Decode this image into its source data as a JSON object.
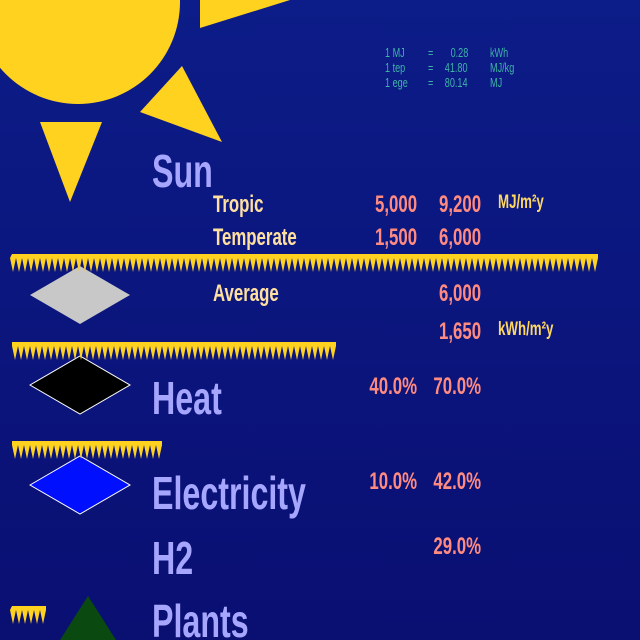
{
  "conversions": [
    {
      "unit": "1 MJ",
      "equals": "=",
      "value": "0.28",
      "target": "kWh"
    },
    {
      "unit": "1 tep",
      "equals": "=",
      "value": "41.80",
      "target": "MJ/kg"
    },
    {
      "unit": "1 ege",
      "equals": "=",
      "value": "80.14",
      "target": "MJ"
    }
  ],
  "sun": {
    "title": "Sun",
    "rows": [
      {
        "label": "Tropic",
        "low": "5,000",
        "high": "9,200",
        "unit": "MJ/m²y"
      },
      {
        "label": "Temperate",
        "low": "1,500",
        "high": "6,000"
      },
      {
        "label": "Average",
        "high": "6,000"
      },
      {
        "high": "1,650",
        "unit": "kWh/m²y"
      }
    ]
  },
  "uses": [
    {
      "name": "Heat",
      "low": "40.0%",
      "high": "70.0%"
    },
    {
      "name": "Electricity",
      "low": "10.0%",
      "high": "42.0%"
    },
    {
      "name": "H2",
      "high": "29.0%"
    },
    {
      "name": "Plants"
    }
  ]
}
